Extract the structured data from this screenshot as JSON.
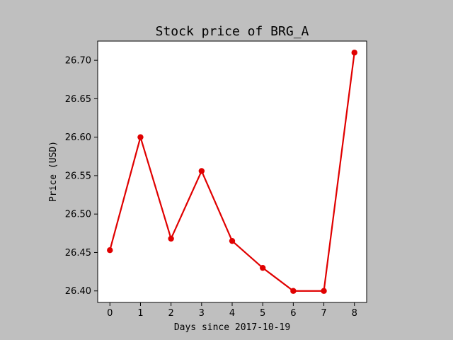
{
  "chart_data": {
    "type": "line",
    "title": "Stock price of BRG_A",
    "xlabel": "Days since 2017-10-19",
    "ylabel": "Price (USD)",
    "x": [
      0,
      1,
      2,
      3,
      4,
      5,
      6,
      7,
      8
    ],
    "series": [
      {
        "values": [
          26.453,
          26.6,
          26.468,
          26.556,
          26.465,
          26.43,
          26.4,
          26.4,
          26.71
        ],
        "color": "#e00000"
      }
    ],
    "xlim": [
      -0.4,
      8.4
    ],
    "ylim": [
      26.385,
      26.725
    ],
    "xticks": [
      0,
      1,
      2,
      3,
      4,
      5,
      6,
      7,
      8
    ],
    "xtick_labels": [
      "0",
      "1",
      "2",
      "3",
      "4",
      "5",
      "6",
      "7",
      "8"
    ],
    "yticks": [
      26.4,
      26.45,
      26.5,
      26.55,
      26.6,
      26.65,
      26.7
    ],
    "ytick_labels": [
      "26.40",
      "26.45",
      "26.50",
      "26.55",
      "26.60",
      "26.65",
      "26.70"
    ],
    "grid": false,
    "legend": false,
    "figure_background": "#bfbfbf",
    "axes_background": "#ffffff"
  }
}
